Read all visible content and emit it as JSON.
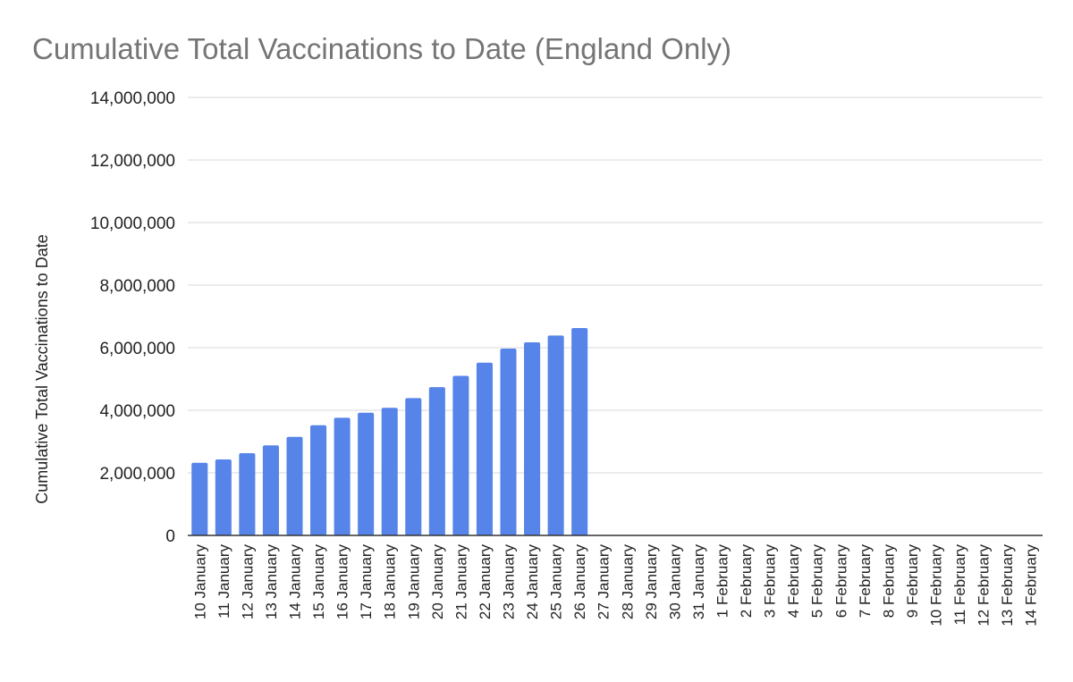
{
  "chart_data": {
    "type": "bar",
    "title": "Cumulative Total Vaccinations to Date (England Only)",
    "xlabel": "",
    "ylabel": "Cumulative Total Vaccinations to Date",
    "ylim": [
      0,
      14000000
    ],
    "yticks": [
      0,
      2000000,
      4000000,
      6000000,
      8000000,
      10000000,
      12000000,
      14000000
    ],
    "ytick_labels": [
      "0",
      "2,000,000",
      "4,000,000",
      "6,000,000",
      "8,000,000",
      "10,000,000",
      "12,000,000",
      "14,000,000"
    ],
    "grid": true,
    "legend": "none",
    "bar_color": "#5684e8",
    "categories": [
      "10 January",
      "11 January",
      "12 January",
      "13 January",
      "14 January",
      "15 January",
      "16 January",
      "17 January",
      "18 January",
      "19 January",
      "20 January",
      "21 January",
      "22 January",
      "23 January",
      "24 January",
      "25 January",
      "26 January",
      "27 January",
      "28 January",
      "29 January",
      "30 January",
      "31 January",
      "1 February",
      "2 February",
      "3 February",
      "4 February",
      "5 February",
      "6 February",
      "7 February",
      "8 February",
      "9 February",
      "10 February",
      "11 February",
      "12 February",
      "13 February",
      "14 February"
    ],
    "values": [
      2320000,
      2430000,
      2630000,
      2880000,
      3150000,
      3520000,
      3760000,
      3920000,
      4080000,
      4390000,
      4740000,
      5100000,
      5520000,
      5970000,
      6170000,
      6390000,
      6630000,
      null,
      null,
      null,
      null,
      null,
      null,
      null,
      null,
      null,
      null,
      null,
      null,
      null,
      null,
      null,
      null,
      null,
      null,
      null
    ]
  }
}
